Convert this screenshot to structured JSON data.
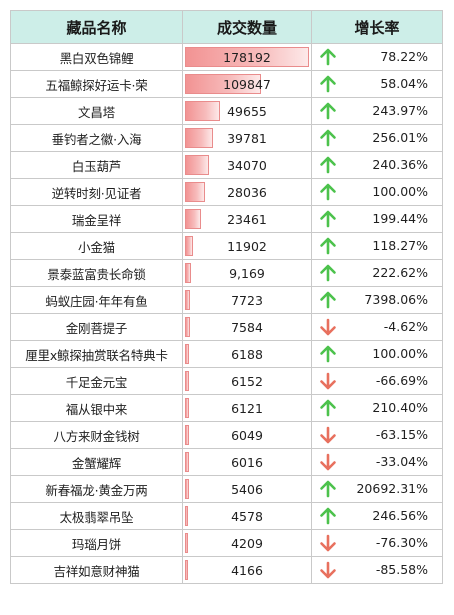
{
  "header": {
    "name": "藏品名称",
    "volume": "成交数量",
    "growth": "增长率"
  },
  "colors": {
    "up": "#4cc24c",
    "down": "#e8705e",
    "bar": "#f29393",
    "header_bg": "#cdeee8"
  },
  "rows": [
    {
      "name": "黑白双色锦鲤",
      "volume": "178192",
      "volume_value": 178192,
      "growth": "78.22%",
      "direction": "up"
    },
    {
      "name": "五福鲸探好运卡·荣",
      "volume": "109847",
      "volume_value": 109847,
      "growth": "58.04%",
      "direction": "up"
    },
    {
      "name": "文昌塔",
      "volume": "49655",
      "volume_value": 49655,
      "growth": "243.97%",
      "direction": "up"
    },
    {
      "name": "垂钓者之徽·入海",
      "volume": "39781",
      "volume_value": 39781,
      "growth": "256.01%",
      "direction": "up"
    },
    {
      "name": "白玉葫芦",
      "volume": "34070",
      "volume_value": 34070,
      "growth": "240.36%",
      "direction": "up"
    },
    {
      "name": "逆转时刻·见证者",
      "volume": "28036",
      "volume_value": 28036,
      "growth": "100.00%",
      "direction": "up"
    },
    {
      "name": "瑞金呈祥",
      "volume": "23461",
      "volume_value": 23461,
      "growth": "199.44%",
      "direction": "up"
    },
    {
      "name": "小金猫",
      "volume": "11902",
      "volume_value": 11902,
      "growth": "118.27%",
      "direction": "up"
    },
    {
      "name": "景泰蓝富贵长命锁",
      "volume": "9,169",
      "volume_value": 9169,
      "growth": "222.62%",
      "direction": "up"
    },
    {
      "name": "蚂蚁庄园·年年有鱼",
      "volume": "7723",
      "volume_value": 7723,
      "growth": "7398.06%",
      "direction": "up"
    },
    {
      "name": "金刚菩提子",
      "volume": "7584",
      "volume_value": 7584,
      "growth": "-4.62%",
      "direction": "down"
    },
    {
      "name": "厘里x鲸探抽赏联名特典卡",
      "volume": "6188",
      "volume_value": 6188,
      "growth": "100.00%",
      "direction": "up"
    },
    {
      "name": "千足金元宝",
      "volume": "6152",
      "volume_value": 6152,
      "growth": "-66.69%",
      "direction": "down"
    },
    {
      "name": "福从银中来",
      "volume": "6121",
      "volume_value": 6121,
      "growth": "210.40%",
      "direction": "up"
    },
    {
      "name": "八方来财金钱树",
      "volume": "6049",
      "volume_value": 6049,
      "growth": "-63.15%",
      "direction": "down"
    },
    {
      "name": "金蟹耀辉",
      "volume": "6016",
      "volume_value": 6016,
      "growth": "-33.04%",
      "direction": "down"
    },
    {
      "name": "新春福龙·黄金万两",
      "volume": "5406",
      "volume_value": 5406,
      "growth": "20692.31%",
      "direction": "up"
    },
    {
      "name": "太极翡翠吊坠",
      "volume": "4578",
      "volume_value": 4578,
      "growth": "246.56%",
      "direction": "up"
    },
    {
      "name": "玛瑙月饼",
      "volume": "4209",
      "volume_value": 4209,
      "growth": "-76.30%",
      "direction": "down"
    },
    {
      "name": "吉祥如意财神猫",
      "volume": "4166",
      "volume_value": 4166,
      "growth": "-85.58%",
      "direction": "down"
    }
  ]
}
